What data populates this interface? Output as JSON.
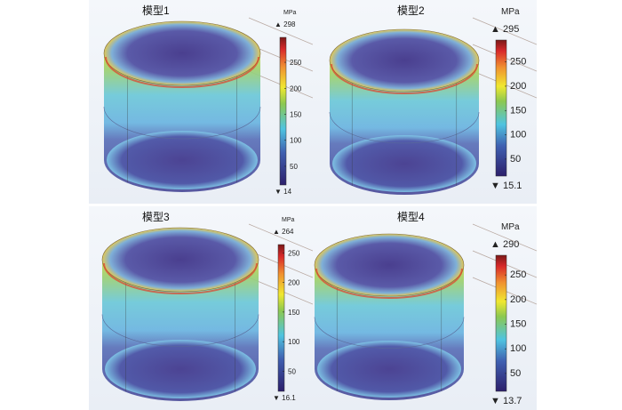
{
  "figure": {
    "panels": [
      {
        "title": "模型1",
        "unit": "MPa",
        "max": "298",
        "min": "14",
        "max_value": 298,
        "min_value": 14,
        "ticks": [
          50,
          100,
          150,
          200,
          250
        ],
        "tick_labels": [
          "50",
          "100",
          "150",
          "200",
          "250"
        ]
      },
      {
        "title": "模型2",
        "unit": "MPa",
        "max": "295",
        "min": "15.1",
        "max_value": 295,
        "min_value": 15.1,
        "ticks": [
          50,
          100,
          150,
          200,
          250
        ],
        "tick_labels": [
          "50",
          "100",
          "150",
          "200",
          "250"
        ]
      },
      {
        "title": "模型3",
        "unit": "MPa",
        "max": "264",
        "min": "16.1",
        "max_value": 264,
        "min_value": 16.1,
        "ticks": [
          50,
          100,
          150,
          200,
          250
        ],
        "tick_labels": [
          "50",
          "100",
          "150",
          "200",
          "250"
        ]
      },
      {
        "title": "模型4",
        "unit": "MPa",
        "max": "290",
        "min": "13.7",
        "max_value": 290,
        "min_value": 13.7,
        "ticks": [
          50,
          100,
          150,
          200,
          250
        ],
        "tick_labels": [
          "50",
          "100",
          "150",
          "200",
          "250"
        ]
      }
    ],
    "colors": {
      "low": "#2c1f6b",
      "mid": "#4fc4e0",
      "high": "#d8282a"
    }
  }
}
